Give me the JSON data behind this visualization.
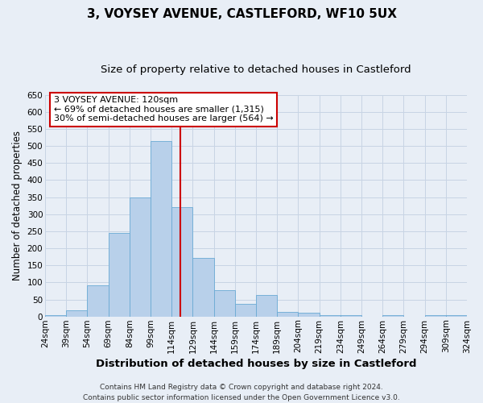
{
  "title": "3, VOYSEY AVENUE, CASTLEFORD, WF10 5UX",
  "subtitle": "Size of property relative to detached houses in Castleford",
  "xlabel": "Distribution of detached houses by size in Castleford",
  "ylabel": "Number of detached properties",
  "bar_labels": [
    "24sqm",
    "39sqm",
    "54sqm",
    "69sqm",
    "84sqm",
    "99sqm",
    "114sqm",
    "129sqm",
    "144sqm",
    "159sqm",
    "174sqm",
    "189sqm",
    "204sqm",
    "219sqm",
    "234sqm",
    "249sqm",
    "264sqm",
    "279sqm",
    "294sqm",
    "309sqm",
    "324sqm"
  ],
  "bin_edges": [
    24,
    39,
    54,
    69,
    84,
    99,
    114,
    129,
    144,
    159,
    174,
    189,
    204,
    219,
    234,
    249,
    264,
    279,
    294,
    309,
    324
  ],
  "bar_values": [
    5,
    18,
    92,
    245,
    348,
    515,
    320,
    172,
    77,
    37,
    63,
    14,
    12,
    4,
    4,
    0,
    5,
    0,
    5,
    5
  ],
  "bar_color": "#b8d0ea",
  "bar_edge_color": "#6aaad4",
  "vline_x": 120,
  "vline_color": "#cc0000",
  "ylim": [
    0,
    650
  ],
  "yticks": [
    0,
    50,
    100,
    150,
    200,
    250,
    300,
    350,
    400,
    450,
    500,
    550,
    600,
    650
  ],
  "grid_color": "#c8d4e4",
  "bg_color": "#e8eef6",
  "annotation_title": "3 VOYSEY AVENUE: 120sqm",
  "annotation_line1": "← 69% of detached houses are smaller (1,315)",
  "annotation_line2": "30% of semi-detached houses are larger (564) →",
  "annotation_box_color": "#ffffff",
  "annotation_box_edge": "#cc0000",
  "footer1": "Contains HM Land Registry data © Crown copyright and database right 2024.",
  "footer2": "Contains public sector information licensed under the Open Government Licence v3.0.",
  "title_fontsize": 11,
  "subtitle_fontsize": 9.5,
  "xlabel_fontsize": 9.5,
  "ylabel_fontsize": 8.5,
  "tick_fontsize": 7.5,
  "annotation_fontsize": 8,
  "footer_fontsize": 6.5
}
